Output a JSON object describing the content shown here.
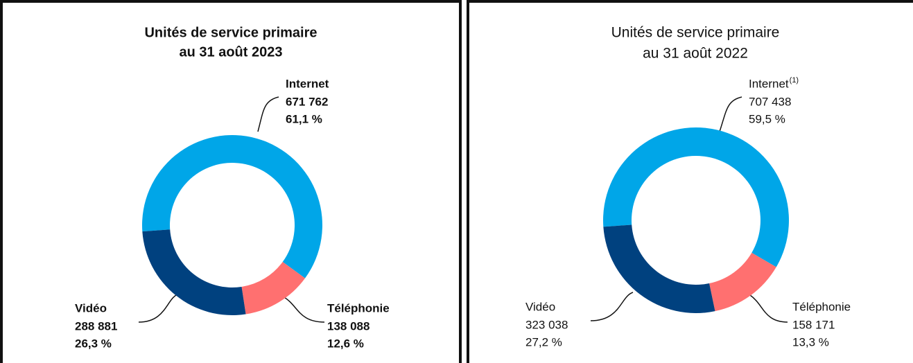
{
  "chart_data": [
    {
      "type": "donut",
      "title": [
        "Unités de service primaire",
        "au 31 août 2023"
      ],
      "categories": [
        "Internet",
        "Téléphonie",
        "Vidéo"
      ],
      "values": [
        671762,
        138088,
        288881
      ],
      "value_labels": [
        "671 762",
        "138 088",
        "288 881"
      ],
      "percents": [
        61.1,
        12.6,
        26.3
      ],
      "percent_labels": [
        "61,1 %",
        "12,6 %",
        "26,3 %"
      ],
      "colors": [
        "#00a6e8",
        "#ff7070",
        "#00417f"
      ]
    },
    {
      "type": "donut",
      "title": [
        "Unités de service primaire",
        "au 31 août 2022"
      ],
      "categories": [
        "Internet",
        "Téléphonie",
        "Vidéo"
      ],
      "footnote_marks": [
        "(1)",
        null,
        null
      ],
      "values": [
        707438,
        158171,
        323038
      ],
      "value_labels": [
        "707 438",
        "158 171",
        "323 038"
      ],
      "percents": [
        59.5,
        13.3,
        27.2
      ],
      "percent_labels": [
        "59,5 %",
        "13,3 %",
        "27,2 %"
      ],
      "colors": [
        "#00a6e8",
        "#ff7070",
        "#00417f"
      ]
    }
  ]
}
